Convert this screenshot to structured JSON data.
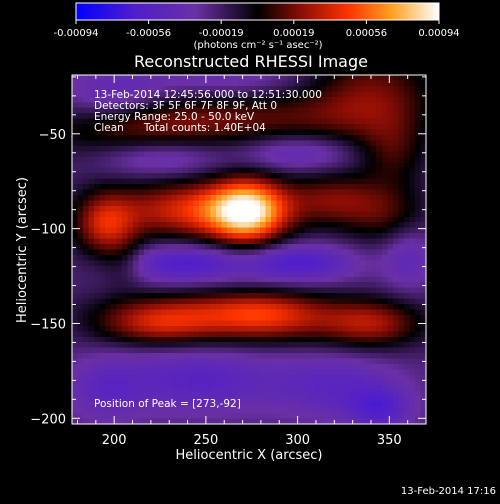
{
  "chart_data": {
    "type": "heatmap",
    "title": "Reconstructed RHESSI Image",
    "xlabel": "Heliocentric X (arcsec)",
    "ylabel": "Heliocentric Y (arcsec)",
    "xlim": [
      177,
      370
    ],
    "ylim": [
      -203,
      -19
    ],
    "x_ticks": [
      200,
      250,
      300,
      350
    ],
    "y_ticks": [
      -50,
      -100,
      -150,
      -200
    ],
    "colorbar": {
      "units": "(photons cm⁻² s⁻¹ asec⁻²)",
      "min": -0.00094,
      "max": 0.00094,
      "ticks": [
        "-0.00094",
        "-0.00056",
        "-0.00019",
        "0.00019",
        "0.00056",
        "0.00094"
      ]
    },
    "info": [
      "13-Feb-2014 12:45:56.000 to 12:51:30.000",
      "Detectors: 3F 5F 6F 7F 8F 9F, Att 0",
      "Energy Range: 25.0 - 50.0 keV",
      "Clean      Total counts: 1.40E+04"
    ],
    "peak_text": "Position of Peak = [273,-92]",
    "peak": [
      273,
      -92
    ],
    "blobs": [
      {
        "x": 273,
        "y": -91,
        "sx": 15,
        "sy": 12,
        "a": 1.05
      },
      {
        "x": 240,
        "y": -90,
        "sx": 28,
        "sy": 11,
        "a": 0.62
      },
      {
        "x": 195,
        "y": -98,
        "sx": 12,
        "sy": 12,
        "a": 0.55
      },
      {
        "x": 318,
        "y": -85,
        "sx": 18,
        "sy": 10,
        "a": 0.4
      },
      {
        "x": 348,
        "y": -92,
        "sx": 16,
        "sy": 12,
        "a": 0.3
      },
      {
        "x": 225,
        "y": -150,
        "sx": 25,
        "sy": 8,
        "a": 0.6
      },
      {
        "x": 283,
        "y": -147,
        "sx": 25,
        "sy": 9,
        "a": 0.62
      },
      {
        "x": 340,
        "y": -150,
        "sx": 20,
        "sy": 9,
        "a": 0.52
      },
      {
        "x": 250,
        "y": -140,
        "sx": 40,
        "sy": 6,
        "a": 0.18
      },
      {
        "x": 215,
        "y": -48,
        "sx": 35,
        "sy": 12,
        "a": 0.4
      },
      {
        "x": 280,
        "y": -42,
        "sx": 40,
        "sy": 10,
        "a": 0.3
      },
      {
        "x": 340,
        "y": -30,
        "sx": 25,
        "sy": 18,
        "a": 0.42
      },
      {
        "x": 352,
        "y": -60,
        "sx": 12,
        "sy": 12,
        "a": 0.25
      },
      {
        "x": 205,
        "y": -118,
        "sx": 8,
        "sy": 10,
        "a": 0.15
      },
      {
        "x": 238,
        "y": -118,
        "sx": 22,
        "sy": 7,
        "a": -0.45
      },
      {
        "x": 300,
        "y": -118,
        "sx": 22,
        "sy": 7,
        "a": -0.45
      },
      {
        "x": 225,
        "y": -62,
        "sx": 25,
        "sy": 8,
        "a": -0.35
      },
      {
        "x": 300,
        "y": -60,
        "sx": 22,
        "sy": 7,
        "a": -0.3
      },
      {
        "x": 200,
        "y": -30,
        "sx": 20,
        "sy": 10,
        "a": -0.3
      },
      {
        "x": 245,
        "y": -180,
        "sx": 30,
        "sy": 12,
        "a": -0.35
      },
      {
        "x": 320,
        "y": -183,
        "sx": 25,
        "sy": 12,
        "a": -0.3
      },
      {
        "x": 345,
        "y": -195,
        "sx": 12,
        "sy": 8,
        "a": -0.35
      },
      {
        "x": 195,
        "y": -185,
        "sx": 15,
        "sy": 12,
        "a": -0.25
      },
      {
        "x": 360,
        "y": -115,
        "sx": 10,
        "sy": 12,
        "a": -0.25
      },
      {
        "x": 260,
        "y": -20,
        "sx": 30,
        "sy": 8,
        "a": -0.2
      }
    ]
  },
  "timestamp": "13-Feb-2014 17:16"
}
